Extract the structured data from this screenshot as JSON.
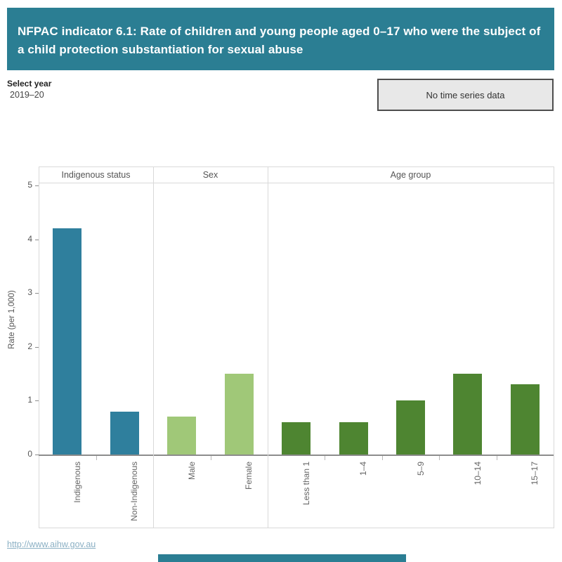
{
  "header": {
    "title": "NFPAC indicator 6.1: Rate of children and young people aged 0–17 who were the subject of a child protection substantiation for sexual abuse"
  },
  "controls": {
    "select_year_label": "Select year",
    "selected_year": "2019–20",
    "no_data_button_label": "No time series data"
  },
  "chart_data": {
    "type": "bar",
    "ylabel": "Rate (per 1,000)",
    "ylim": [
      0,
      5
    ],
    "yticks": [
      0,
      1,
      2,
      3,
      4,
      5
    ],
    "grid": false,
    "panels": [
      {
        "label": "Indigenous status",
        "color": "#2f7f9d",
        "categories": [
          "Indigenous",
          "Non-Indigenous"
        ],
        "values": [
          4.2,
          0.8
        ]
      },
      {
        "label": "Sex",
        "color": "#a0c878",
        "categories": [
          "Male",
          "Female"
        ],
        "values": [
          0.7,
          1.5
        ]
      },
      {
        "label": "Age group",
        "color": "#4e8531",
        "categories": [
          "Less than 1",
          "1–4",
          "5–9",
          "10–14",
          "15–17"
        ],
        "values": [
          0.6,
          0.6,
          1.0,
          1.5,
          1.3
        ]
      }
    ]
  },
  "footer": {
    "link": "http://www.aihw.gov.au"
  },
  "colors": {
    "header_bg": "#2b7e93",
    "button_bg": "#e8e8e8",
    "link": "#8bb0c4",
    "accent_bar": "#2b7e93"
  }
}
